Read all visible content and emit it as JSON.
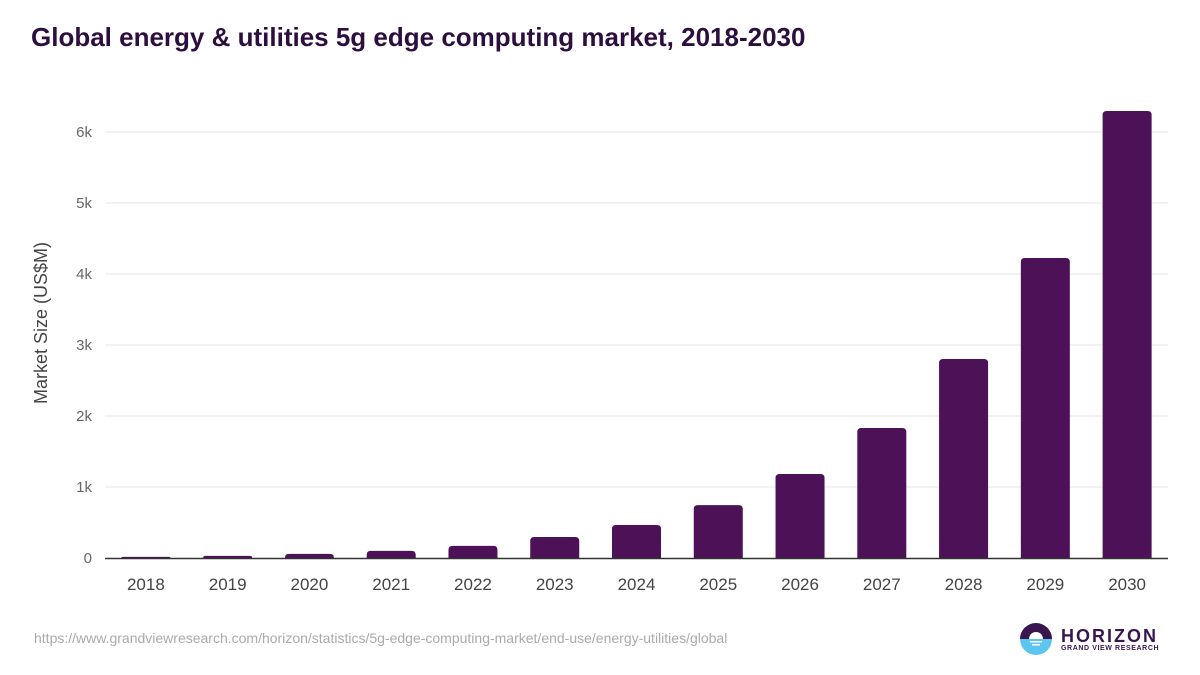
{
  "chart_data": {
    "type": "bar",
    "title": "Global energy & utilities 5g edge computing market, 2018-2030",
    "xlabel": "",
    "ylabel": "Market Size (US$M)",
    "categories": [
      "2018",
      "2019",
      "2020",
      "2021",
      "2022",
      "2023",
      "2024",
      "2025",
      "2026",
      "2027",
      "2028",
      "2029",
      "2030"
    ],
    "values": [
      15,
      30,
      58,
      100,
      170,
      295,
      465,
      745,
      1183,
      1831,
      2803,
      4225,
      6296
    ],
    "ylim": [
      0,
      6000
    ],
    "yticks": [
      0,
      1000,
      2000,
      3000,
      4000,
      5000,
      6000
    ],
    "ytick_labels": [
      "0",
      "1k",
      "2k",
      "3k",
      "4k",
      "5k",
      "6k"
    ],
    "grid": true,
    "bar_color": "#4c1157"
  },
  "footer": {
    "source_url": "https://www.grandviewresearch.com/horizon/statistics/5g-edge-computing-market/end-use/energy-utilities/global",
    "logo_name": "HORIZON",
    "logo_sub": "GRAND VIEW RESEARCH"
  }
}
